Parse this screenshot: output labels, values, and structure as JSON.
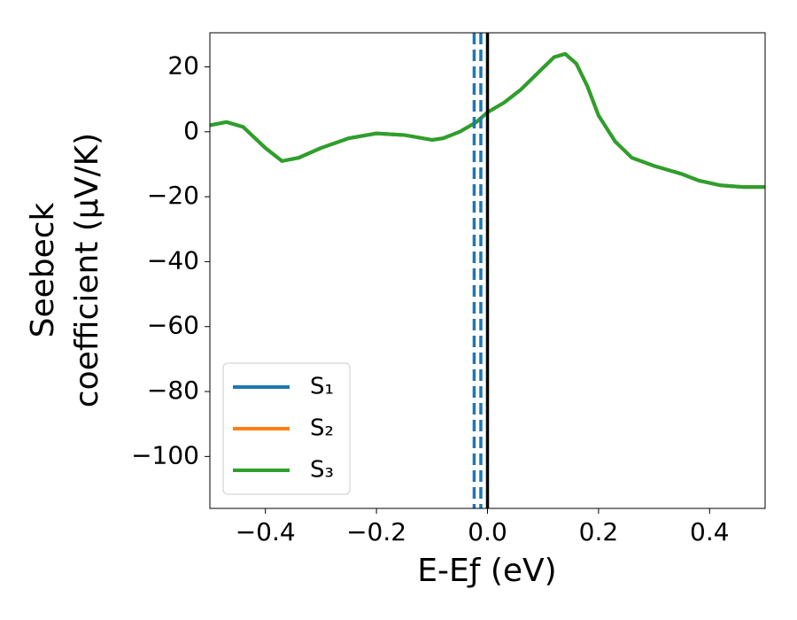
{
  "chart_data": {
    "type": "line",
    "xlabel": "E-Eƒ (eV)",
    "ylabel": [
      "Seebeck",
      "coefficient  (μV/K)"
    ],
    "x": [
      -0.5,
      -0.47,
      -0.44,
      -0.4,
      -0.37,
      -0.34,
      -0.3,
      -0.25,
      -0.2,
      -0.15,
      -0.1,
      -0.08,
      -0.05,
      -0.02,
      0.0,
      0.03,
      0.06,
      0.09,
      0.12,
      0.14,
      0.16,
      0.18,
      0.2,
      0.23,
      0.26,
      0.3,
      0.35,
      0.38,
      0.42,
      0.46,
      0.5
    ],
    "series": [
      {
        "name": "S₁",
        "color": "#1f77b4",
        "values": [
          2,
          3,
          1.5,
          -5,
          -9,
          -8,
          -5,
          -2,
          -0.5,
          -1,
          -2.5,
          -2,
          0,
          3,
          6,
          9,
          13,
          18,
          23,
          24,
          21,
          14,
          5,
          -3,
          -8,
          -10.5,
          -13,
          -15,
          -16.5,
          -17,
          -17
        ]
      },
      {
        "name": "S₂",
        "color": "#ff7f0e",
        "values": [
          2,
          3,
          1.5,
          -5,
          -9,
          -8,
          -5,
          -2,
          -0.5,
          -1,
          -2.5,
          -2,
          0,
          3,
          6,
          9,
          13,
          18,
          23,
          24,
          21,
          14,
          5,
          -3,
          -8,
          -10.5,
          -13,
          -15,
          -16.5,
          -17,
          -17
        ]
      },
      {
        "name": "S₃",
        "color": "#2ca02c",
        "values": [
          2,
          3,
          1.5,
          -5,
          -9,
          -8,
          -5,
          -2,
          -0.5,
          -1,
          -2.5,
          -2,
          0,
          3,
          6,
          9,
          13,
          18,
          23,
          24,
          21,
          14,
          5,
          -3,
          -8,
          -10.5,
          -13,
          -15,
          -16.5,
          -17,
          -17
        ]
      }
    ],
    "vlines": [
      {
        "x": -0.024,
        "color": "#1f77b4",
        "style": "dashed"
      },
      {
        "x": -0.012,
        "color": "#1f77b4",
        "style": "dashed"
      },
      {
        "x": 0.0,
        "color": "#000000",
        "style": "solid"
      }
    ],
    "xlim": [
      -0.5,
      0.5
    ],
    "ylim": [
      -116,
      30.5
    ],
    "xticks": [
      {
        "value": -0.4,
        "label": "−0.4"
      },
      {
        "value": -0.2,
        "label": "−0.2"
      },
      {
        "value": 0.0,
        "label": "0.0"
      },
      0.2,
      0.4
    ],
    "yticks": [
      {
        "value": -100,
        "label": "−100"
      },
      {
        "value": -80,
        "label": "−80"
      },
      {
        "value": -60,
        "label": "−60"
      },
      {
        "value": -40,
        "label": "−40"
      },
      {
        "value": -20,
        "label": "−20"
      },
      0,
      20
    ],
    "grid": false,
    "legend": "lower left"
  }
}
